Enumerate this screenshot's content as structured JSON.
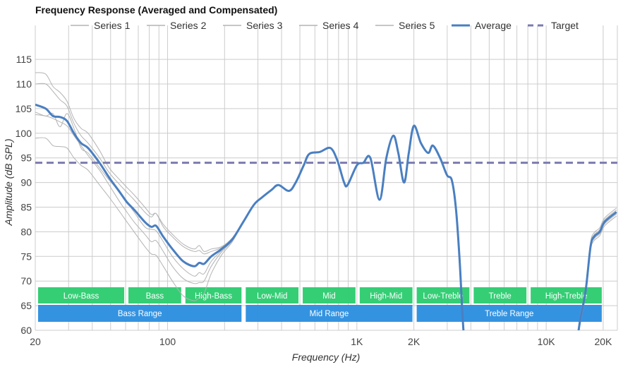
{
  "chart_data": {
    "type": "line",
    "title": "Frequency Response (Averaged and Compensated)",
    "xlabel": "Frequency (Hz)",
    "ylabel": "Amplitude (dB SPL)",
    "xscale": "log",
    "xlim": [
      20,
      23500
    ],
    "ylim": [
      60,
      120
    ],
    "grid": true,
    "legend_position": "top",
    "x_tick_labels": [
      {
        "value": 20,
        "label": "20"
      },
      {
        "value": 100,
        "label": "100"
      },
      {
        "value": 1000,
        "label": "1K"
      },
      {
        "value": 2000,
        "label": "2K"
      },
      {
        "value": 10000,
        "label": "10K"
      },
      {
        "value": 20000,
        "label": "20K"
      }
    ],
    "x_gridlines": [
      20,
      30,
      40,
      50,
      60,
      70,
      80,
      90,
      100,
      200,
      300,
      400,
      500,
      600,
      700,
      800,
      900,
      1000,
      2000,
      3000,
      4000,
      5000,
      6000,
      7000,
      8000,
      9000,
      10000,
      20000
    ],
    "y_ticks": [
      60,
      65,
      70,
      75,
      80,
      85,
      90,
      95,
      100,
      105,
      110,
      115
    ],
    "legend": [
      {
        "name": "Series 1",
        "style": "thin-grey"
      },
      {
        "name": "Series 2",
        "style": "thin-grey"
      },
      {
        "name": "Series 3",
        "style": "thin-grey"
      },
      {
        "name": "Series 4",
        "style": "thin-grey"
      },
      {
        "name": "Series 5",
        "style": "thin-grey"
      },
      {
        "name": "Average",
        "style": "thick-blue"
      },
      {
        "name": "Target",
        "style": "dashed-purple"
      }
    ],
    "colors": {
      "series": "#b3b3b3",
      "average": "#4a7fc1",
      "target": "#7b7bb0",
      "grid": "#cccccc",
      "band_sub": "#2ecc71",
      "band_range": "#2d8fe0"
    },
    "average": [
      [
        20,
        105.8
      ],
      [
        22.7,
        105
      ],
      [
        24.8,
        103.5
      ],
      [
        27,
        103.3
      ],
      [
        29.4,
        102.5
      ],
      [
        32,
        100
      ],
      [
        34.9,
        98
      ],
      [
        38,
        97
      ],
      [
        43.7,
        94
      ],
      [
        49.1,
        91
      ],
      [
        56,
        88
      ],
      [
        61,
        86
      ],
      [
        66.5,
        84.5
      ],
      [
        75.8,
        82
      ],
      [
        82,
        81
      ],
      [
        87,
        81.2
      ],
      [
        94.9,
        79
      ],
      [
        106,
        76.5
      ],
      [
        121,
        74
      ],
      [
        138,
        73
      ],
      [
        147,
        73.7
      ],
      [
        156,
        73.5
      ],
      [
        170,
        75
      ],
      [
        193,
        76.5
      ],
      [
        220,
        78.5
      ],
      [
        251,
        82
      ],
      [
        286,
        85.5
      ],
      [
        316,
        87
      ],
      [
        354,
        88.5
      ],
      [
        385,
        89.5
      ],
      [
        437,
        88.3
      ],
      [
        475,
        90
      ],
      [
        524,
        93.5
      ],
      [
        560,
        95.8
      ],
      [
        637,
        96.2
      ],
      [
        724,
        97
      ],
      [
        788,
        94.5
      ],
      [
        856,
        90
      ],
      [
        893,
        89.5
      ],
      [
        1000,
        93.5
      ],
      [
        1082,
        94
      ],
      [
        1178,
        95
      ],
      [
        1317,
        86.5
      ],
      [
        1431,
        95
      ],
      [
        1557,
        99.5
      ],
      [
        1655,
        96
      ],
      [
        1775,
        90
      ],
      [
        1880,
        96
      ],
      [
        2000,
        101.5
      ],
      [
        2180,
        98
      ],
      [
        2380,
        96
      ],
      [
        2520,
        97.5
      ],
      [
        2750,
        95
      ],
      [
        2990,
        91.5
      ],
      [
        3170,
        90.5
      ],
      [
        3330,
        85
      ],
      [
        3480,
        75
      ],
      [
        3600,
        64
      ],
      [
        3680,
        58
      ]
    ],
    "average_tail": [
      [
        14600,
        58
      ],
      [
        15100,
        62
      ],
      [
        16150,
        68
      ],
      [
        17150,
        77
      ],
      [
        17900,
        79
      ],
      [
        19170,
        80
      ],
      [
        20350,
        82
      ],
      [
        23500,
        84
      ]
    ],
    "target": {
      "value": 94
    },
    "series": [
      {
        "name": "Series 1",
        "offsets_db": [
          6.5,
          7,
          6,
          5,
          4,
          3,
          3,
          3,
          2.5,
          2,
          2.5,
          3,
          3,
          3,
          2.5,
          2.5,
          2.5,
          3,
          3.5,
          3.5,
          3.5,
          2.5,
          1.5,
          0.5,
          0.3,
          0,
          0,
          0,
          0,
          0,
          0,
          0,
          0,
          0,
          0,
          0,
          0,
          0,
          0,
          0,
          0,
          0,
          0,
          0,
          0,
          0,
          0,
          0,
          0,
          0,
          0,
          0,
          0,
          0,
          0,
          0,
          0,
          0,
          0
        ]
      },
      {
        "name": "Series 2",
        "offsets_db": [
          4.2,
          5,
          5,
          3.5,
          3,
          2,
          1.5,
          1,
          1,
          1,
          1.5,
          2,
          2,
          2,
          2,
          2.5,
          2,
          2.5,
          3,
          3,
          2.5,
          2,
          1,
          0.3,
          0.2,
          0,
          0,
          0,
          0,
          0,
          0,
          0,
          0,
          0,
          0,
          0,
          0,
          0,
          0,
          0,
          0,
          0,
          0,
          0,
          0,
          0,
          0,
          0,
          0,
          0,
          0,
          0,
          0,
          0,
          0,
          0,
          0,
          0,
          0
        ]
      },
      {
        "name": "Series 3",
        "offsets_db": [
          -1.5,
          -1.5,
          0.5,
          -2,
          1.5,
          1,
          -1,
          -1,
          -1,
          -0.5,
          0,
          0,
          -0.5,
          -1,
          -0.5,
          -1,
          -1,
          -1.5,
          -1.5,
          -2,
          -2,
          -2,
          -1,
          -0.3,
          -0.2,
          0,
          0,
          0,
          0,
          0,
          0,
          0,
          0,
          0,
          0,
          0,
          0,
          0,
          0,
          0,
          0,
          0,
          0,
          0,
          0,
          0,
          0,
          0,
          0,
          0,
          0,
          0,
          0,
          0,
          0,
          0,
          0,
          0,
          0
        ]
      },
      {
        "name": "Series 4",
        "offsets_db": [
          -2,
          -1.5,
          -0.5,
          -1,
          -1,
          -0.5,
          -0.5,
          -1.5,
          -1.5,
          -1.5,
          -2,
          -2,
          -2.5,
          -2.5,
          -3,
          -3,
          -3,
          -3.5,
          -3.5,
          -3.5,
          -4,
          -3.5,
          -2,
          -0.6,
          -0.3,
          0,
          0,
          0,
          0,
          0,
          0,
          0,
          0,
          0,
          0,
          0,
          0,
          0,
          0,
          0,
          0,
          0,
          0,
          0,
          0,
          0,
          0,
          0,
          0,
          0,
          0,
          0,
          0,
          0,
          0,
          0,
          0,
          0,
          0
        ]
      },
      {
        "name": "Series 5",
        "offsets_db": [
          -6.8,
          -6,
          -6,
          -6,
          -5.5,
          -5,
          -4.5,
          -4.5,
          -4.5,
          -4,
          -4,
          -4,
          -4.5,
          -5,
          -5.5,
          -6,
          -6,
          -6.5,
          -7,
          -7,
          -7,
          -6,
          -3.5,
          -1.2,
          -0.5,
          0,
          0,
          0,
          0,
          0,
          0,
          0,
          0,
          0,
          0,
          0,
          0,
          0,
          0,
          0,
          0,
          0,
          0,
          0,
          0,
          0,
          0,
          0,
          0,
          0,
          0,
          0,
          0,
          0,
          0,
          0,
          0,
          0,
          0
        ]
      }
    ],
    "bands_sub": [
      {
        "label": "Low-Bass",
        "from": 20,
        "to": 60
      },
      {
        "label": "Bass",
        "from": 60,
        "to": 120
      },
      {
        "label": "High-Bass",
        "from": 120,
        "to": 250
      },
      {
        "label": "Low-Mid",
        "from": 250,
        "to": 500
      },
      {
        "label": "Mid",
        "from": 500,
        "to": 1000
      },
      {
        "label": "High-Mid",
        "from": 1000,
        "to": 2000
      },
      {
        "label": "Low-Treble",
        "from": 2000,
        "to": 4000
      },
      {
        "label": "Treble",
        "from": 4000,
        "to": 8000
      },
      {
        "label": "High-Treble",
        "from": 8000,
        "to": 20000
      }
    ],
    "bands_range": [
      {
        "label": "Bass Range",
        "from": 20,
        "to": 250
      },
      {
        "label": "Mid Range",
        "from": 250,
        "to": 2000
      },
      {
        "label": "Treble Range",
        "from": 2000,
        "to": 20000
      }
    ]
  }
}
